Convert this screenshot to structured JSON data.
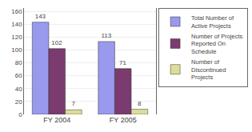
{
  "chart_data": {
    "type": "bar",
    "categories": [
      "FY 2004",
      "FY 2005"
    ],
    "series": [
      {
        "name": "Total Number of\nActive Projects",
        "color": "#9999EE",
        "values": [
          143,
          113
        ]
      },
      {
        "name": "Number of Projects\nReported On\nSchedule",
        "color": "#7B3B6E",
        "values": [
          102,
          71
        ]
      },
      {
        "name": "Number of\nDiscontinued\nProjects",
        "color": "#DDDD99",
        "values": [
          7,
          8
        ]
      }
    ],
    "ylim": [
      0,
      165
    ],
    "yticks": [
      0,
      20,
      40,
      60,
      80,
      100,
      120,
      140,
      160
    ],
    "grid": true,
    "data_labels": true,
    "legend": "right"
  }
}
